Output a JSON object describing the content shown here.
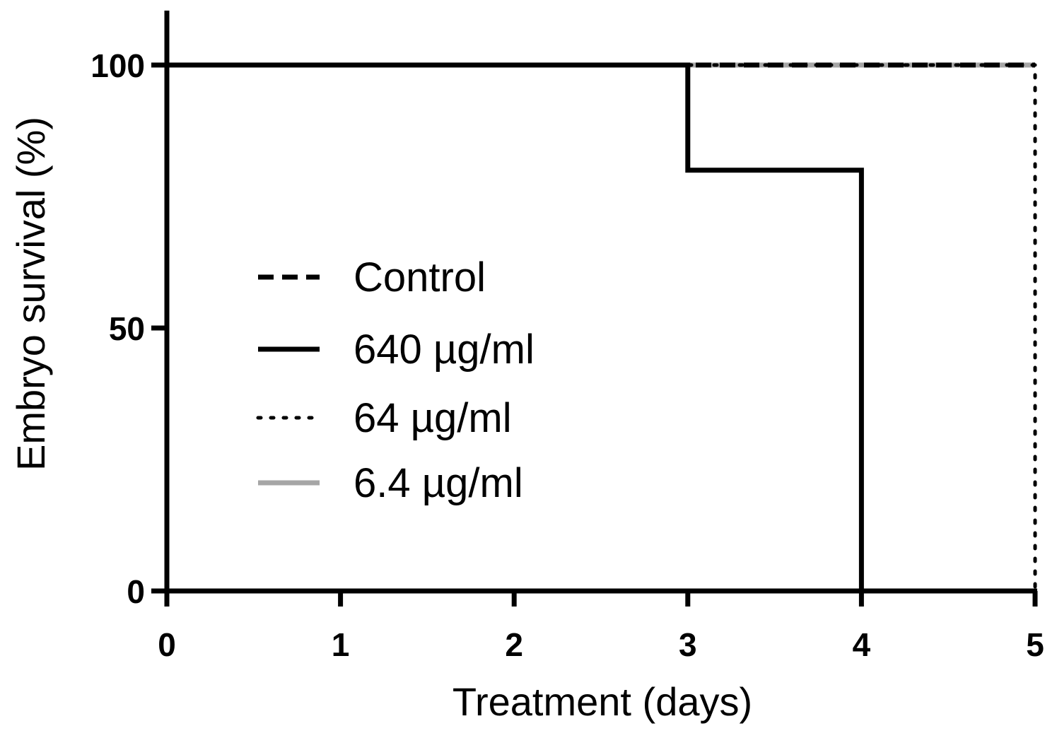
{
  "chart_data": {
    "type": "line",
    "subtype": "survival-step",
    "title": "",
    "xlabel": "Treatment (days)",
    "ylabel": "Embryo survival (%)",
    "xlim": [
      0,
      5
    ],
    "ylim": [
      0,
      110
    ],
    "xticks": [
      0,
      1,
      2,
      3,
      4,
      5
    ],
    "yticks": [
      0,
      50,
      100
    ],
    "grid": false,
    "legend_position": "center-left",
    "series": [
      {
        "name": "Control",
        "style": "dashed",
        "color": "#000000",
        "x": [
          0,
          5
        ],
        "y": [
          100,
          100
        ]
      },
      {
        "name": "640 µg/ml",
        "style": "solid",
        "color": "#000000",
        "x": [
          0,
          3,
          3,
          4,
          4
        ],
        "y": [
          100,
          100,
          80,
          80,
          0
        ]
      },
      {
        "name": "64 µg/ml",
        "style": "dotted",
        "color": "#000000",
        "x": [
          0,
          5,
          5
        ],
        "y": [
          100,
          100,
          0
        ]
      },
      {
        "name": "6.4 µg/ml",
        "style": "solid",
        "color": "#a6a6a6",
        "x": [
          0,
          5
        ],
        "y": [
          100,
          100
        ]
      }
    ]
  }
}
